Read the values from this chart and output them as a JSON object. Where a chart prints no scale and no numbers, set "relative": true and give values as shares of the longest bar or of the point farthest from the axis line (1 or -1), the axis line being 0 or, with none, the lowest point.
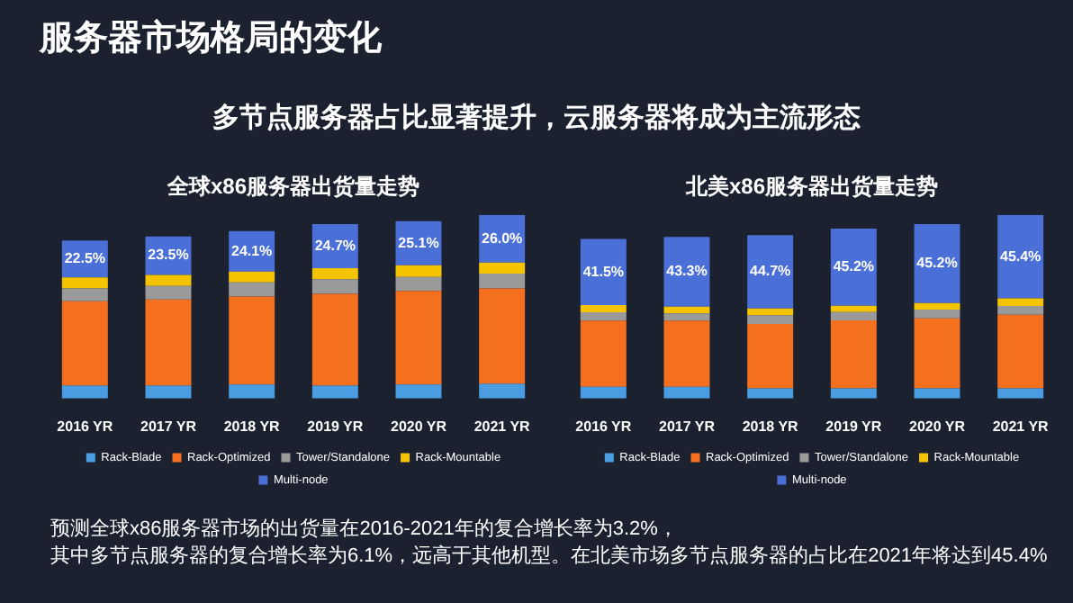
{
  "chart_data": [
    {
      "type": "bar",
      "title": "全球x86服务器出货量走势",
      "categories": [
        "2016 YR",
        "2017 YR",
        "2018 YR",
        "2019 YR",
        "2020 YR",
        "2021 YR"
      ],
      "stacked": true,
      "relative": true,
      "legend": "bottom",
      "series": [
        {
          "name": "Rack-Blade",
          "color": "#4a9de0",
          "values": [
            0.07,
            0.07,
            0.076,
            0.07,
            0.076,
            0.08
          ]
        },
        {
          "name": "Rack-Optimized",
          "color": "#f5701e",
          "values": [
            0.46,
            0.47,
            0.48,
            0.5,
            0.51,
            0.52
          ]
        },
        {
          "name": "Tower/Standalone",
          "color": "#9a9a9a",
          "values": [
            0.07,
            0.073,
            0.076,
            0.08,
            0.076,
            0.08
          ]
        },
        {
          "name": "Rack-Mountable",
          "color": "#f5c400",
          "values": [
            0.06,
            0.06,
            0.06,
            0.06,
            0.064,
            0.06
          ]
        },
        {
          "name": "Multi-node",
          "color": "#4a6fd6",
          "values": [
            0.2,
            0.21,
            0.22,
            0.24,
            0.24,
            0.26
          ]
        }
      ],
      "annotations": [
        "22.5%",
        "23.5%",
        "24.1%",
        "24.7%",
        "25.1%",
        "26.0%"
      ]
    },
    {
      "type": "bar",
      "title": "北美x86服务器出货量走势",
      "categories": [
        "2016 YR",
        "2017 YR",
        "2018 YR",
        "2019 YR",
        "2020 YR",
        "2021 YR"
      ],
      "stacked": true,
      "relative": true,
      "legend": "bottom",
      "series": [
        {
          "name": "Rack-Blade",
          "color": "#4a9de0",
          "values": [
            0.064,
            0.064,
            0.056,
            0.056,
            0.056,
            0.056
          ]
        },
        {
          "name": "Rack-Optimized",
          "color": "#f5701e",
          "values": [
            0.36,
            0.36,
            0.35,
            0.37,
            0.38,
            0.4
          ]
        },
        {
          "name": "Tower/Standalone",
          "color": "#9a9a9a",
          "values": [
            0.045,
            0.04,
            0.048,
            0.045,
            0.048,
            0.048
          ]
        },
        {
          "name": "Rack-Mountable",
          "color": "#f5c400",
          "values": [
            0.04,
            0.036,
            0.036,
            0.034,
            0.036,
            0.042
          ]
        },
        {
          "name": "Multi-node",
          "color": "#4a6fd6",
          "values": [
            0.36,
            0.38,
            0.4,
            0.42,
            0.43,
            0.454
          ]
        }
      ],
      "annotations": [
        "41.5%",
        "43.3%",
        "44.7%",
        "45.2%",
        "45.2%",
        "45.4%"
      ]
    },
    {
      "type": "other",
      "title": "服务器市场格局的变化",
      "subtitle": "多节点服务器占比显著提升，云服务器将成为主流形态",
      "annotations": [
        "预测全球x86服务器市场的出货量在2016-2021年的复合增长率为3.2%，",
        "其中多节点服务器的复合增长率为6.1%，远高于其他机型。在北美市场多节点服务器的占比在2021年将达到45.4%"
      ]
    }
  ]
}
